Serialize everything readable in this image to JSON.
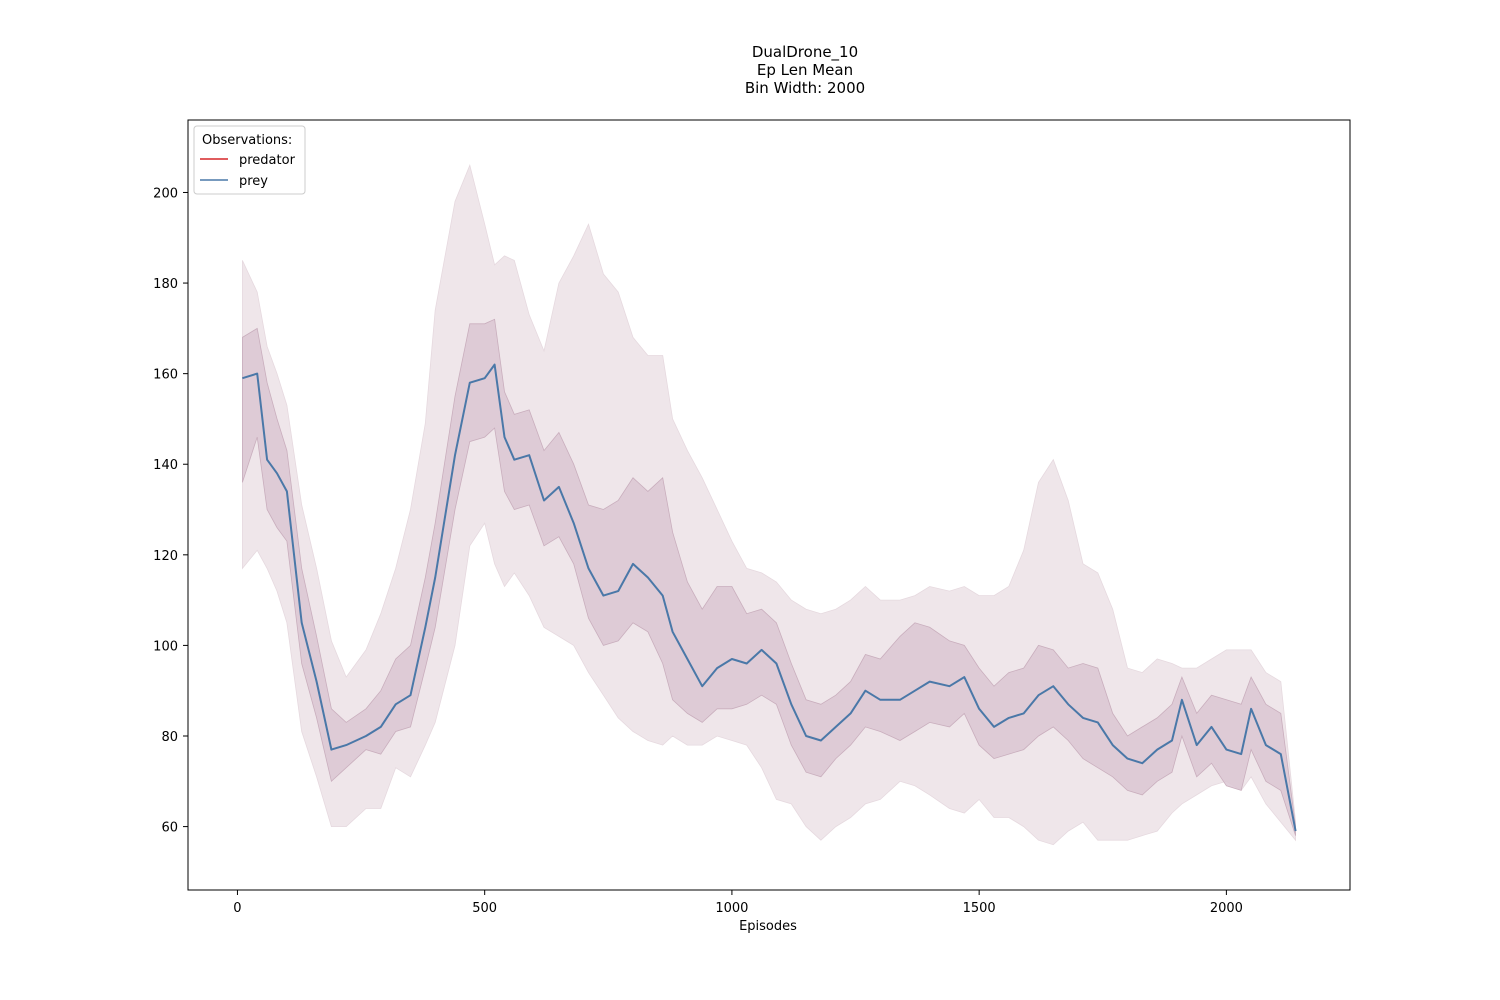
{
  "chart_data": {
    "type": "line",
    "title_lines": [
      "DualDrone_10",
      "Ep Len Mean",
      "Bin Width: 2000"
    ],
    "xlabel": "Episodes",
    "ylabel": "",
    "xlim": [
      -100,
      2250
    ],
    "ylim": [
      46,
      216
    ],
    "xticks": [
      0,
      500,
      1000,
      1500,
      2000
    ],
    "yticks": [
      60,
      80,
      100,
      120,
      140,
      160,
      180,
      200
    ],
    "grid": false,
    "legend": {
      "title": "Observations:",
      "placement": "top-left",
      "entries": [
        {
          "name": "predator",
          "color": "#d62728"
        },
        {
          "name": "prey",
          "color": "#4a78a8"
        }
      ]
    },
    "colors": {
      "outer_band": "#efe6ea",
      "inner_band": "#dac6d2",
      "band_edge": "#c9aebd"
    },
    "series": [
      {
        "name": "prey",
        "color": "#4a78a8",
        "x": [
          10,
          40,
          60,
          80,
          100,
          130,
          160,
          190,
          220,
          260,
          290,
          320,
          350,
          380,
          400,
          440,
          470,
          500,
          520,
          540,
          560,
          590,
          620,
          650,
          680,
          710,
          740,
          770,
          800,
          830,
          860,
          880,
          910,
          940,
          970,
          1000,
          1030,
          1060,
          1090,
          1120,
          1150,
          1180,
          1210,
          1240,
          1270,
          1300,
          1340,
          1370,
          1400,
          1440,
          1470,
          1500,
          1530,
          1560,
          1590,
          1620,
          1650,
          1680,
          1710,
          1740,
          1770,
          1800,
          1830,
          1860,
          1890,
          1910,
          1940,
          1970,
          2000,
          2030,
          2050,
          2080,
          2110,
          2140
        ],
        "y": [
          159,
          160,
          141,
          138,
          134,
          105,
          92,
          77,
          78,
          80,
          82,
          87,
          89,
          104,
          115,
          142,
          158,
          159,
          162,
          146,
          141,
          142,
          132,
          135,
          127,
          117,
          111,
          112,
          118,
          115,
          111,
          103,
          97,
          91,
          95,
          97,
          96,
          99,
          96,
          87,
          80,
          79,
          82,
          85,
          90,
          88,
          88,
          90,
          92,
          91,
          93,
          86,
          82,
          84,
          85,
          89,
          91,
          87,
          84,
          83,
          78,
          75,
          74,
          77,
          79,
          88,
          78,
          82,
          77,
          76,
          86,
          78,
          76,
          59
        ],
        "inner_upper": [
          168,
          170,
          158,
          150,
          143,
          117,
          102,
          86,
          83,
          86,
          90,
          97,
          100,
          115,
          127,
          155,
          171,
          171,
          172,
          156,
          151,
          152,
          143,
          147,
          140,
          131,
          130,
          132,
          137,
          134,
          137,
          125,
          114,
          108,
          113,
          113,
          107,
          108,
          105,
          96,
          88,
          87,
          89,
          92,
          98,
          97,
          102,
          105,
          104,
          101,
          100,
          95,
          91,
          94,
          95,
          100,
          99,
          95,
          96,
          95,
          85,
          80,
          82,
          84,
          87,
          93,
          85,
          89,
          88,
          87,
          93,
          87,
          85,
          60
        ],
        "inner_lower": [
          136,
          146,
          130,
          126,
          123,
          96,
          84,
          70,
          73,
          77,
          76,
          81,
          82,
          95,
          104,
          130,
          145,
          146,
          148,
          134,
          130,
          131,
          122,
          124,
          118,
          106,
          100,
          101,
          105,
          103,
          96,
          88,
          85,
          83,
          86,
          86,
          87,
          89,
          87,
          78,
          72,
          71,
          75,
          78,
          82,
          81,
          79,
          81,
          83,
          82,
          85,
          78,
          75,
          76,
          77,
          80,
          82,
          79,
          75,
          73,
          71,
          68,
          67,
          70,
          72,
          80,
          71,
          74,
          69,
          68,
          77,
          70,
          68,
          58
        ],
        "outer_upper": [
          185,
          178,
          166,
          160,
          153,
          131,
          117,
          101,
          93,
          99,
          107,
          117,
          130,
          149,
          174,
          198,
          206,
          193,
          184,
          186,
          185,
          173,
          165,
          180,
          186,
          193,
          182,
          178,
          168,
          164,
          164,
          150,
          143,
          137,
          130,
          123,
          117,
          116,
          114,
          110,
          108,
          107,
          108,
          110,
          113,
          110,
          110,
          111,
          113,
          112,
          113,
          111,
          111,
          113,
          121,
          136,
          141,
          132,
          118,
          116,
          108,
          95,
          94,
          97,
          96,
          95,
          95,
          97,
          99,
          99,
          99,
          94,
          92,
          61
        ],
        "outer_lower": [
          117,
          121,
          117,
          112,
          105,
          81,
          71,
          60,
          60,
          64,
          64,
          73,
          71,
          78,
          83,
          100,
          122,
          127,
          118,
          113,
          116,
          111,
          104,
          102,
          100,
          94,
          89,
          84,
          81,
          79,
          78,
          80,
          78,
          78,
          80,
          79,
          78,
          73,
          66,
          65,
          60,
          57,
          60,
          62,
          65,
          66,
          70,
          69,
          67,
          64,
          63,
          66,
          62,
          62,
          60,
          57,
          56,
          59,
          61,
          57,
          57,
          57,
          58,
          59,
          63,
          65,
          67,
          69,
          70,
          68,
          71,
          65,
          61,
          57
        ]
      },
      {
        "name": "predator",
        "color": "#d62728",
        "x": [],
        "y": []
      }
    ]
  }
}
